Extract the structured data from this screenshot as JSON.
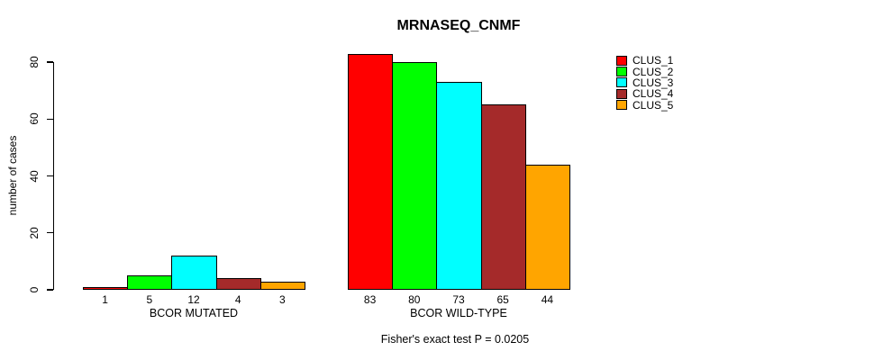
{
  "chart_data": {
    "type": "bar",
    "title": "MRNASEQ_CNMF",
    "ylabel": "number of cases",
    "xlabel": "",
    "ylim": [
      0,
      80
    ],
    "yticks": [
      0,
      20,
      40,
      60,
      80
    ],
    "grid": false,
    "legend_position": "right-inside",
    "bar_value_labels": true,
    "categories": [
      "BCOR MUTATED",
      "BCOR WILD-TYPE"
    ],
    "series": [
      {
        "name": "CLUS_1",
        "color": "#FF0000",
        "values": [
          1,
          83
        ]
      },
      {
        "name": "CLUS_2",
        "color": "#00FF00",
        "values": [
          5,
          80
        ]
      },
      {
        "name": "CLUS_3",
        "color": "#00FFFF",
        "values": [
          12,
          73
        ]
      },
      {
        "name": "CLUS_4",
        "color": "#A52A2A",
        "values": [
          4,
          65
        ]
      },
      {
        "name": "CLUS_5",
        "color": "#FFA500",
        "values": [
          3,
          44
        ]
      }
    ],
    "annotation": "Fisher's exact test P = 0.0205"
  },
  "colors": {
    "axis": "#000000",
    "background": "#FFFFFF"
  }
}
